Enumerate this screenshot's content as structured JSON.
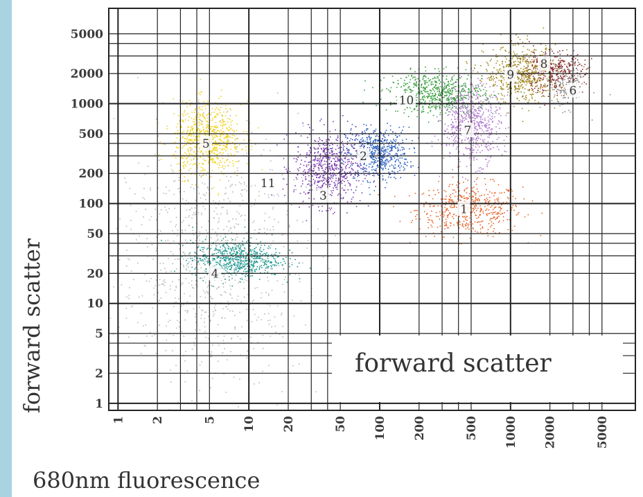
{
  "chart_data": {
    "type": "scatter",
    "xlabel": "680nm fluorescence",
    "ylabel": "forward scatter",
    "inner_label": "forward scatter",
    "x_scale": "log",
    "y_scale": "log",
    "xlim": [
      0.85,
      9000
    ],
    "ylim": [
      0.85,
      9000
    ],
    "x_ticks": [
      {
        "value": 1,
        "label": "1"
      },
      {
        "value": 2,
        "label": "2"
      },
      {
        "value": 5,
        "label": "5"
      },
      {
        "value": 10,
        "label": "10"
      },
      {
        "value": 20,
        "label": "20"
      },
      {
        "value": 50,
        "label": "50"
      },
      {
        "value": 100,
        "label": "100"
      },
      {
        "value": 200,
        "label": "200"
      },
      {
        "value": 500,
        "label": "500"
      },
      {
        "value": 1000,
        "label": "1000"
      },
      {
        "value": 2000,
        "label": "2000"
      },
      {
        "value": 5000,
        "label": "5000"
      }
    ],
    "y_ticks": [
      {
        "value": 1,
        "label": "1"
      },
      {
        "value": 2,
        "label": "2"
      },
      {
        "value": 5,
        "label": "5"
      },
      {
        "value": 10,
        "label": "10"
      },
      {
        "value": 20,
        "label": "20"
      },
      {
        "value": 50,
        "label": "50"
      },
      {
        "value": 100,
        "label": "100"
      },
      {
        "value": 200,
        "label": "200"
      },
      {
        "value": 500,
        "label": "500"
      },
      {
        "value": 1000,
        "label": "1000"
      },
      {
        "value": 2000,
        "label": "2000"
      },
      {
        "value": 5000,
        "label": "5000"
      }
    ],
    "grid": true,
    "series": [
      {
        "label": "1",
        "color": "#e8652a",
        "x": 480,
        "y": 88,
        "spread_x": 0.2,
        "spread_y": 0.13,
        "n": 520
      },
      {
        "label": "2",
        "color": "#2a5fc0",
        "x": 95,
        "y": 320,
        "spread_x": 0.12,
        "spread_y": 0.13,
        "n": 600
      },
      {
        "label": "3",
        "color": "#7a3ab0",
        "x": 40,
        "y": 230,
        "spread_x": 0.13,
        "spread_y": 0.18,
        "n": 650
      },
      {
        "label": "4",
        "color": "#1a9890",
        "x": 8,
        "y": 28,
        "spread_x": 0.17,
        "spread_y": 0.09,
        "n": 650
      },
      {
        "label": "5",
        "color": "#f2d21a",
        "x": 4.8,
        "y": 450,
        "spread_x": 0.13,
        "spread_y": 0.18,
        "n": 700
      },
      {
        "label": "6",
        "color": "#888888",
        "x": 2600,
        "y": 1600,
        "spread_x": 0.08,
        "spread_y": 0.12,
        "n": 180
      },
      {
        "label": "7",
        "color": "#b07ad0",
        "x": 500,
        "y": 650,
        "spread_x": 0.11,
        "spread_y": 0.2,
        "n": 650
      },
      {
        "label": "8",
        "color": "#8b2a2a",
        "x": 2000,
        "y": 2100,
        "spread_x": 0.13,
        "spread_y": 0.1,
        "n": 350
      },
      {
        "label": "9",
        "color": "#a08a20",
        "x": 1200,
        "y": 2000,
        "spread_x": 0.14,
        "spread_y": 0.14,
        "n": 550
      },
      {
        "label": "10",
        "color": "#3aa040",
        "x": 270,
        "y": 1300,
        "spread_x": 0.18,
        "spread_y": 0.1,
        "n": 600
      },
      {
        "label": "11",
        "color": "#b8b8b8",
        "x": 5,
        "y": 30,
        "spread_x": 0.35,
        "spread_y": 0.6,
        "n": 900
      }
    ],
    "cluster_labels": [
      {
        "text": "1",
        "x": 440,
        "y": 88
      },
      {
        "text": "2",
        "x": 75,
        "y": 300
      },
      {
        "text": "3",
        "x": 37,
        "y": 120
      },
      {
        "text": "4",
        "x": 5.5,
        "y": 20
      },
      {
        "text": "5",
        "x": 4.7,
        "y": 400
      },
      {
        "text": "6",
        "x": 3000,
        "y": 1350
      },
      {
        "text": "7",
        "x": 470,
        "y": 540
      },
      {
        "text": "8",
        "x": 1800,
        "y": 2500
      },
      {
        "text": "9",
        "x": 1000,
        "y": 1950
      },
      {
        "text": "10",
        "x": 160,
        "y": 1080
      },
      {
        "text": "11",
        "x": 14,
        "y": 160
      }
    ],
    "colors": {
      "background": "#ffffff",
      "border": "#a9d3e0",
      "grid": "#222222",
      "text": "#333333"
    }
  }
}
